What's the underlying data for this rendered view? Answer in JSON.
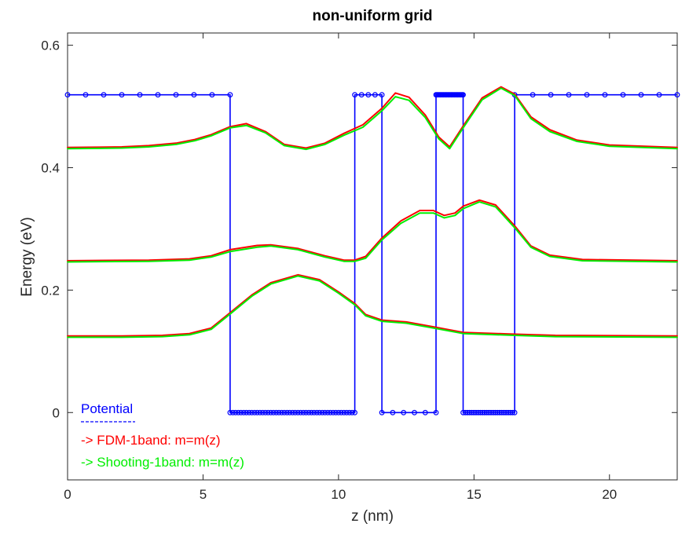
{
  "chart_data": {
    "type": "line",
    "title": "non-uniform grid",
    "xlabel": "z (nm)",
    "ylabel": "Energy (eV)",
    "xlim": [
      0,
      22.5
    ],
    "ylim": [
      -0.11,
      0.62
    ],
    "xticks": [
      0,
      5,
      10,
      15,
      20
    ],
    "yticks": [
      0,
      0.2,
      0.4,
      0.6
    ],
    "xtick_labels": [
      "0",
      "5",
      "10",
      "15",
      "20"
    ],
    "ytick_labels": [
      "0",
      "0.2",
      "0.4",
      "0.6"
    ],
    "grid": false,
    "legend_position": "bottom-left",
    "potential": {
      "name": "Potential",
      "color": "#0000ff",
      "x": [
        0,
        6.0,
        6.0,
        10.6,
        10.6,
        11.6,
        11.6,
        13.6,
        13.6,
        14.6,
        14.6,
        16.5,
        16.5,
        22.5
      ],
      "y": [
        0.519,
        0.519,
        0,
        0,
        0.519,
        0.519,
        0,
        0,
        0.519,
        0.519,
        0,
        0,
        0.519,
        0.519
      ],
      "markers": [
        {
          "start": 0,
          "end": 6.0,
          "step": 0.667,
          "y": 0.519
        },
        {
          "start": 6.0,
          "end": 10.6,
          "step": 0.1,
          "y": 0
        },
        {
          "start": 10.6,
          "end": 11.6,
          "step": 0.25,
          "y": 0.519
        },
        {
          "start": 11.6,
          "end": 13.6,
          "step": 0.4,
          "y": 0
        },
        {
          "start": 13.6,
          "end": 14.6,
          "step": 0.04,
          "y": 0.519
        },
        {
          "start": 14.6,
          "end": 16.5,
          "step": 0.08,
          "y": 0
        },
        {
          "start": 16.5,
          "end": 22.5,
          "step": 0.667,
          "y": 0.519
        }
      ]
    },
    "series": [
      {
        "name": "-> FDM-1band: m=m(z)",
        "color": "#ff0000",
        "levels": [
          {
            "x": [
              0,
              2,
              3,
              4,
              4.7,
              5.3,
              6.0,
              6.6,
              7.3,
              8.0,
              8.8,
              9.5,
              10.2,
              10.9,
              11.6,
              12.1,
              12.6,
              13.2,
              13.7,
              14.1,
              14.6,
              15.3,
              16.0,
              16.5,
              17.1,
              17.8,
              18.8,
              20,
              22.5
            ],
            "y": [
              0.433,
              0.434,
              0.436,
              0.44,
              0.446,
              0.454,
              0.467,
              0.472,
              0.459,
              0.438,
              0.432,
              0.44,
              0.456,
              0.47,
              0.497,
              0.522,
              0.515,
              0.486,
              0.45,
              0.434,
              0.468,
              0.514,
              0.532,
              0.52,
              0.483,
              0.462,
              0.445,
              0.437,
              0.433
            ]
          },
          {
            "x": [
              0,
              3,
              4.5,
              5.3,
              6.0,
              7.0,
              7.5,
              8.5,
              9.5,
              10.2,
              10.6,
              11.0,
              11.6,
              12.3,
              13.0,
              13.5,
              13.9,
              14.3,
              14.6,
              15.2,
              15.8,
              16.5,
              17.1,
              17.8,
              19,
              22.5
            ],
            "y": [
              0.248,
              0.249,
              0.251,
              0.256,
              0.266,
              0.273,
              0.274,
              0.268,
              0.256,
              0.249,
              0.249,
              0.255,
              0.285,
              0.313,
              0.33,
              0.33,
              0.322,
              0.326,
              0.337,
              0.347,
              0.339,
              0.305,
              0.272,
              0.257,
              0.25,
              0.248
            ]
          },
          {
            "x": [
              0,
              2,
              3.5,
              4.5,
              5.3,
              6.0,
              6.8,
              7.5,
              8.5,
              9.3,
              10.0,
              10.6,
              11.0,
              11.6,
              12.5,
              13.5,
              14.6,
              16.5,
              18,
              22.5
            ],
            "y": [
              0.125,
              0.125,
              0.126,
              0.129,
              0.138,
              0.163,
              0.192,
              0.212,
              0.225,
              0.217,
              0.197,
              0.178,
              0.16,
              0.151,
              0.148,
              0.14,
              0.131,
              0.128,
              0.126,
              0.125
            ]
          }
        ]
      },
      {
        "name": "-> Shooting-1band: m=m(z)",
        "color": "#00ee00",
        "levels": [
          {
            "x": [
              0,
              2,
              3,
              4,
              4.7,
              5.3,
              6.0,
              6.6,
              7.3,
              8.0,
              8.8,
              9.5,
              10.2,
              10.9,
              11.6,
              12.1,
              12.6,
              13.2,
              13.7,
              14.1,
              14.6,
              15.3,
              16.0,
              16.5,
              17.1,
              17.8,
              18.8,
              20,
              22.5
            ],
            "y": [
              0.431,
              0.432,
              0.434,
              0.438,
              0.444,
              0.452,
              0.465,
              0.469,
              0.457,
              0.436,
              0.43,
              0.438,
              0.453,
              0.466,
              0.493,
              0.516,
              0.51,
              0.482,
              0.447,
              0.431,
              0.465,
              0.511,
              0.53,
              0.518,
              0.48,
              0.459,
              0.443,
              0.435,
              0.431
            ]
          },
          {
            "x": [
              0,
              3,
              4.5,
              5.3,
              6.0,
              7.0,
              7.5,
              8.5,
              9.5,
              10.2,
              10.6,
              11.0,
              11.6,
              12.3,
              13.0,
              13.5,
              13.9,
              14.3,
              14.6,
              15.2,
              15.8,
              16.5,
              17.1,
              17.8,
              19,
              22.5
            ],
            "y": [
              0.246,
              0.247,
              0.249,
              0.254,
              0.263,
              0.27,
              0.272,
              0.266,
              0.254,
              0.247,
              0.247,
              0.252,
              0.282,
              0.309,
              0.326,
              0.326,
              0.318,
              0.322,
              0.333,
              0.344,
              0.336,
              0.302,
              0.27,
              0.255,
              0.248,
              0.246
            ]
          },
          {
            "x": [
              0,
              2,
              3.5,
              4.5,
              5.3,
              6.0,
              6.8,
              7.5,
              8.5,
              9.3,
              10.0,
              10.6,
              11.0,
              11.6,
              12.5,
              13.5,
              14.6,
              16.5,
              18,
              22.5
            ],
            "y": [
              0.123,
              0.123,
              0.124,
              0.127,
              0.136,
              0.161,
              0.19,
              0.21,
              0.223,
              0.215,
              0.195,
              0.176,
              0.158,
              0.149,
              0.146,
              0.138,
              0.129,
              0.126,
              0.124,
              0.123
            ]
          }
        ]
      }
    ]
  }
}
